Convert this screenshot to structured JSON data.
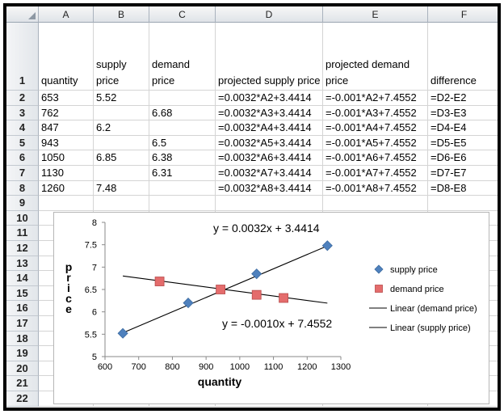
{
  "columns": [
    "A",
    "B",
    "C",
    "D",
    "E",
    "F"
  ],
  "header_row": {
    "row": "1",
    "cells": [
      "quantity",
      "supply price",
      "demand price",
      "projected supply price",
      "projected demand price",
      "difference"
    ]
  },
  "rows": [
    {
      "row": "2",
      "cells": [
        "653",
        "5.52",
        "",
        "=0.0032*A2+3.4414",
        "=-0.001*A2+7.4552",
        "=D2-E2"
      ]
    },
    {
      "row": "3",
      "cells": [
        "762",
        "",
        "6.68",
        "=0.0032*A3+3.4414",
        "=-0.001*A3+7.4552",
        "=D3-E3"
      ]
    },
    {
      "row": "4",
      "cells": [
        "847",
        "6.2",
        "",
        "=0.0032*A4+3.4414",
        "=-0.001*A4+7.4552",
        "=D4-E4"
      ]
    },
    {
      "row": "5",
      "cells": [
        "943",
        "",
        "6.5",
        "=0.0032*A5+3.4414",
        "=-0.001*A5+7.4552",
        "=D5-E5"
      ]
    },
    {
      "row": "6",
      "cells": [
        "1050",
        "6.85",
        "6.38",
        "=0.0032*A6+3.4414",
        "=-0.001*A6+7.4552",
        "=D6-E6"
      ]
    },
    {
      "row": "7",
      "cells": [
        "1130",
        "",
        "6.31",
        "=0.0032*A7+3.4414",
        "=-0.001*A7+7.4552",
        "=D7-E7"
      ]
    },
    {
      "row": "8",
      "cells": [
        "1260",
        "7.48",
        "",
        "=0.0032*A8+3.4414",
        "=-0.001*A8+7.4552",
        "=D8-E8"
      ]
    }
  ],
  "extra_rows": [
    "9",
    "10",
    "11",
    "12",
    "13",
    "14",
    "15",
    "16",
    "17",
    "18",
    "19",
    "20",
    "21",
    "22"
  ],
  "chart_data": {
    "type": "scatter",
    "xlabel": "quantity",
    "ylabel": "price",
    "xlim": [
      600,
      1300
    ],
    "ylim": [
      5,
      8
    ],
    "x_ticks": [
      "600",
      "700",
      "800",
      "900",
      "1000",
      "1100",
      "1200",
      "1300"
    ],
    "y_ticks": [
      "5",
      "5.5",
      "6",
      "6.5",
      "7",
      "7.5",
      "8"
    ],
    "series": [
      {
        "name": "supply price",
        "marker": "diamond",
        "color": "#4f81bd",
        "x": [
          653,
          847,
          1050,
          1260
        ],
        "y": [
          5.52,
          6.2,
          6.85,
          7.48
        ]
      },
      {
        "name": "demand price",
        "marker": "square",
        "color": "#e46c6c",
        "x": [
          762,
          943,
          1050,
          1130
        ],
        "y": [
          6.68,
          6.5,
          6.38,
          6.31
        ]
      }
    ],
    "trendlines": [
      {
        "name": "Linear (demand price)",
        "slope": -0.001,
        "intercept": 7.4552,
        "x_range": [
          653,
          1260
        ],
        "equation": "y = -0.0010x + 7.4552"
      },
      {
        "name": "Linear (supply price)",
        "slope": 0.0032,
        "intercept": 3.4414,
        "x_range": [
          653,
          1260
        ],
        "equation": "y = 0.0032x + 3.4414"
      }
    ],
    "legend_position": "right"
  }
}
